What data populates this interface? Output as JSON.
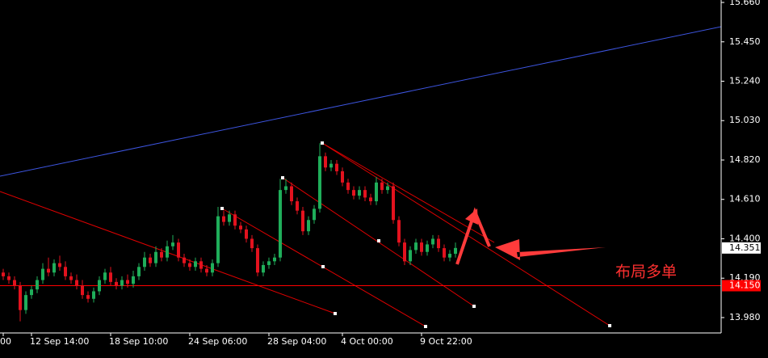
{
  "chart_data": {
    "type": "candlestick",
    "categories": [
      "00",
      null,
      null,
      null,
      null,
      "12 Sep 14:00",
      null,
      null,
      null,
      null,
      null,
      null,
      null,
      null,
      null,
      null,
      null,
      null,
      null,
      "18 Sep 10:00",
      null,
      null,
      null,
      null,
      null,
      null,
      null,
      null,
      null,
      null,
      null,
      null,
      null,
      "24 Sep 06:00",
      null,
      null,
      null,
      null,
      null,
      null,
      null,
      null,
      null,
      null,
      null,
      null,
      null,
      "28 Sep 04:00",
      null,
      null,
      null,
      null,
      null,
      null,
      null,
      null,
      null,
      null,
      null,
      null,
      "4 Oct 00:00",
      null,
      null,
      null,
      null,
      null,
      null,
      null,
      null,
      null,
      null,
      null,
      null,
      null,
      "9 Oct 22:00",
      null,
      null,
      null,
      null,
      null,
      null
    ],
    "open": [
      14.22,
      14.2,
      14.18,
      14.15,
      14.02,
      14.1,
      14.13,
      14.18,
      14.24,
      14.22,
      14.27,
      14.25,
      14.2,
      14.18,
      14.15,
      14.1,
      14.08,
      14.12,
      14.18,
      14.22,
      14.17,
      14.15,
      14.18,
      14.16,
      14.2,
      14.25,
      14.3,
      14.27,
      14.33,
      14.3,
      14.36,
      14.38,
      14.3,
      14.27,
      14.25,
      14.28,
      14.24,
      14.22,
      14.27,
      14.52,
      14.49,
      14.53,
      14.47,
      14.45,
      14.4,
      14.35,
      14.22,
      14.26,
      14.28,
      14.3,
      14.66,
      14.68,
      14.6,
      14.55,
      14.44,
      14.5,
      14.56,
      14.84,
      14.78,
      14.8,
      14.76,
      14.7,
      14.66,
      14.63,
      14.66,
      14.62,
      14.6,
      14.7,
      14.66,
      14.68,
      14.5,
      14.38,
      14.28,
      14.34,
      14.38,
      14.33,
      14.37,
      14.4,
      14.35,
      14.3,
      14.32
    ],
    "high": [
      14.24,
      14.22,
      14.2,
      14.17,
      14.12,
      14.15,
      14.2,
      14.27,
      14.3,
      14.29,
      14.31,
      14.28,
      14.22,
      14.21,
      14.18,
      14.12,
      14.14,
      14.2,
      14.24,
      14.25,
      14.19,
      14.2,
      14.21,
      14.23,
      14.27,
      14.33,
      14.32,
      14.36,
      14.35,
      14.39,
      14.42,
      14.4,
      14.32,
      14.29,
      14.3,
      14.3,
      14.26,
      14.29,
      14.57,
      14.55,
      14.55,
      14.55,
      14.49,
      14.47,
      14.42,
      14.37,
      14.28,
      14.3,
      14.32,
      14.72,
      14.72,
      14.7,
      14.62,
      14.57,
      14.52,
      14.58,
      14.91,
      14.86,
      14.82,
      14.82,
      14.78,
      14.72,
      14.68,
      14.68,
      14.68,
      14.64,
      14.73,
      14.72,
      14.7,
      14.7,
      14.52,
      14.4,
      14.36,
      14.4,
      14.4,
      14.39,
      14.42,
      14.42,
      14.37,
      14.34,
      14.38
    ],
    "low": [
      14.18,
      14.16,
      14.13,
      13.96,
      14.0,
      14.08,
      14.11,
      14.16,
      14.2,
      14.2,
      14.23,
      14.18,
      14.16,
      14.13,
      14.08,
      14.06,
      14.06,
      14.1,
      14.16,
      14.15,
      14.13,
      14.13,
      14.14,
      14.14,
      14.18,
      14.23,
      14.25,
      14.25,
      14.28,
      14.28,
      14.34,
      14.28,
      14.25,
      14.23,
      14.23,
      14.22,
      14.2,
      14.2,
      14.25,
      14.47,
      14.47,
      14.45,
      14.43,
      14.38,
      14.33,
      14.2,
      14.2,
      14.24,
      14.26,
      14.28,
      14.64,
      14.58,
      14.53,
      14.42,
      14.42,
      14.48,
      14.54,
      14.76,
      14.76,
      14.74,
      14.68,
      14.64,
      14.61,
      14.61,
      14.6,
      14.58,
      14.58,
      14.64,
      14.64,
      14.48,
      14.36,
      14.26,
      14.26,
      14.32,
      14.31,
      14.31,
      14.35,
      14.33,
      14.28,
      14.28,
      14.3
    ],
    "close": [
      14.2,
      14.18,
      14.15,
      14.02,
      14.1,
      14.13,
      14.18,
      14.24,
      14.22,
      14.27,
      14.25,
      14.2,
      14.18,
      14.15,
      14.1,
      14.08,
      14.12,
      14.18,
      14.22,
      14.17,
      14.15,
      14.18,
      14.16,
      14.2,
      14.25,
      14.3,
      14.27,
      14.33,
      14.3,
      14.36,
      14.38,
      14.3,
      14.27,
      14.25,
      14.28,
      14.24,
      14.22,
      14.27,
      14.52,
      14.49,
      14.53,
      14.47,
      14.45,
      14.4,
      14.35,
      14.22,
      14.26,
      14.28,
      14.3,
      14.66,
      14.68,
      14.6,
      14.55,
      14.44,
      14.5,
      14.56,
      14.84,
      14.78,
      14.8,
      14.76,
      14.7,
      14.66,
      14.63,
      14.66,
      14.62,
      14.6,
      14.7,
      14.66,
      14.68,
      14.5,
      14.38,
      14.28,
      14.34,
      14.38,
      14.33,
      14.37,
      14.4,
      14.35,
      14.3,
      14.32,
      14.351
    ],
    "up_color": "#1fae5a",
    "down_color": "#e3121e",
    "ylim": [
      13.898,
      15.673
    ],
    "yticks": [
      {
        "value": 13.98,
        "label": "13.980"
      },
      {
        "value": 14.19,
        "label": "14.190"
      },
      {
        "value": 14.4,
        "label": "14.400"
      },
      {
        "value": 14.61,
        "label": "14.610"
      },
      {
        "value": 14.82,
        "label": "14.820"
      },
      {
        "value": 15.03,
        "label": "15.030"
      },
      {
        "value": 15.24,
        "label": "15.240"
      },
      {
        "value": 15.45,
        "label": "15.450"
      },
      {
        "value": 15.66,
        "label": "15.660"
      }
    ],
    "current_price": 14.351,
    "level": {
      "value": 14.15,
      "label": "14.150"
    },
    "level_color": "#ff0000",
    "annotation": "布局多单"
  }
}
